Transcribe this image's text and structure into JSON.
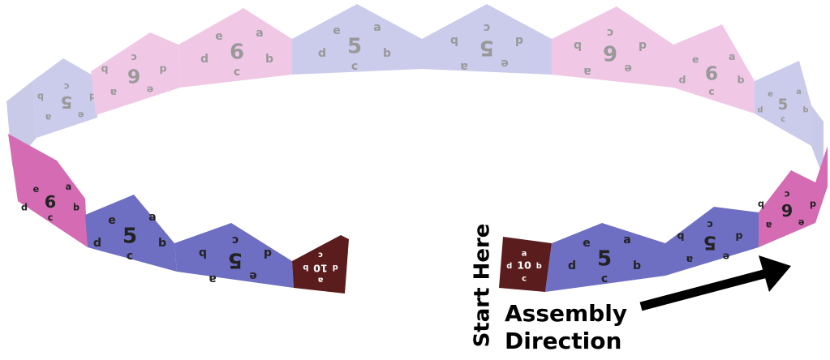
{
  "panels": [
    {
      "number": "5",
      "letters": [
        "a",
        "b",
        "c",
        "d",
        "e"
      ]
    },
    {
      "number": "6",
      "letters": [
        "a",
        "b",
        "c",
        "d",
        "e"
      ]
    },
    {
      "number": "6",
      "letters": [
        "a",
        "b",
        "c",
        "d",
        "e"
      ]
    },
    {
      "number": "5",
      "letters": [
        "a",
        "b",
        "c",
        "d",
        "e"
      ]
    },
    {
      "number": "5",
      "letters": [
        "a",
        "b",
        "c",
        "d",
        "e"
      ]
    },
    {
      "number": "6",
      "letters": [
        "a",
        "b",
        "c",
        "d",
        "e"
      ]
    },
    {
      "number": "6",
      "letters": [
        "a",
        "b",
        "c",
        "d",
        "e"
      ]
    },
    {
      "number": "5",
      "letters": [
        "a",
        "b",
        "c",
        "d",
        "e"
      ]
    },
    {
      "number": "6",
      "letters": [
        "a",
        "b",
        "c",
        "d",
        "e"
      ]
    },
    {
      "number": "5",
      "letters": [
        "a",
        "b",
        "c",
        "d",
        "e"
      ]
    },
    {
      "number": "5",
      "letters": [
        "a",
        "b",
        "c",
        "d",
        "e"
      ]
    },
    {
      "number": "10",
      "letters": [
        "a",
        "b",
        "c",
        "d"
      ]
    },
    {
      "number": "10",
      "letters": [
        "a",
        "b",
        "c",
        "d"
      ]
    },
    {
      "number": "5",
      "letters": [
        "a",
        "b",
        "c",
        "d",
        "e"
      ]
    },
    {
      "number": "5",
      "letters": [
        "a",
        "b",
        "c",
        "d",
        "e"
      ]
    },
    {
      "number": "6",
      "letters": [
        "a",
        "b",
        "c",
        "d",
        "e"
      ]
    }
  ],
  "start_label": "Start Here",
  "direction_label": [
    "Assembly",
    "Direction"
  ]
}
